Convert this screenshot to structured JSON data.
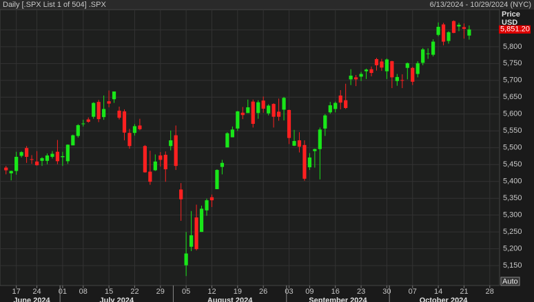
{
  "header": {
    "title": "Daily [.SPX List 1 of 504] .SPX",
    "range": "6/13/2024 - 10/29/2024 (NYC)",
    "button": "Auto"
  },
  "chart_data": {
    "type": "candlestick",
    "y_axis_title": "Price",
    "y_axis_unit": "USD",
    "categories": [
      null,
      null,
      "17",
      null,
      null,
      null,
      "24",
      null,
      null,
      null,
      null,
      "01",
      null,
      null,
      null,
      "08",
      null,
      null,
      null,
      null,
      "15",
      null,
      null,
      null,
      null,
      "22",
      null,
      null,
      null,
      null,
      "29",
      null,
      null,
      null,
      null,
      "05",
      null,
      null,
      null,
      null,
      "12",
      null,
      null,
      null,
      null,
      "19",
      null,
      null,
      null,
      null,
      "26",
      null,
      null,
      null,
      null,
      "03",
      null,
      null,
      null,
      "09",
      null,
      null,
      null,
      null,
      "16",
      null,
      null,
      null,
      null,
      "23",
      null,
      null,
      null,
      null,
      "30",
      null,
      null,
      null,
      null,
      "07",
      null,
      null,
      null,
      null,
      "14",
      null,
      null,
      null,
      null,
      "21",
      null,
      null,
      null,
      null,
      "28",
      null
    ],
    "months": [
      {
        "label": "June 2024",
        "start": 0
      },
      {
        "label": "July 2024",
        "start": 11
      },
      {
        "label": "August 2024",
        "start": 33
      },
      {
        "label": "September 2024",
        "start": 55
      },
      {
        "label": "October 2024",
        "start": 75
      }
    ],
    "open": [
      5441,
      5424,
      5431,
      5476,
      5499,
      5466,
      5459,
      5461,
      5461,
      5473,
      5488,
      5472,
      5460,
      5507,
      5535,
      5572,
      5584,
      5592,
      5636,
      5591,
      5638,
      5644,
      5610,
      5608,
      5544,
      5544,
      5566,
      5505,
      5429,
      5433,
      5477,
      5479,
      5505,
      5537,
      5376,
      5151,
      5206,
      5293,
      5250,
      5314,
      5353,
      5377,
      5443,
      5501,
      5531,
      5557,
      5604,
      5603,
      5637,
      5603,
      5640,
      5602,
      5630,
      5607,
      5613,
      5612,
      5506,
      5522,
      5508,
      5442,
      5490,
      5496,
      5557,
      5605,
      5615,
      5655,
      5641,
      5703,
      5709,
      5711,
      5727,
      5733,
      5763,
      5756,
      5727,
      5757,
      5698,
      5701,
      5737,
      5737,
      5719,
      5752,
      5778,
      5776,
      5835,
      5866,
      5817,
      5876,
      5860,
      5858,
      5833,
      null,
      null,
      null,
      null,
      null
    ],
    "high": [
      5446,
      5432,
      5488,
      5490,
      5505,
      5478,
      5490,
      5472,
      5483,
      5490,
      5523,
      5488,
      5510,
      5539,
      5570,
      5583,
      5590,
      5635,
      5642,
      5655,
      5670,
      5667,
      5622,
      5614,
      5556,
      5570,
      5586,
      5508,
      5491,
      5480,
      5487,
      5489,
      5551,
      5566,
      5395,
      5250,
      5312,
      5331,
      5328,
      5349,
      5361,
      5436,
      5464,
      5546,
      5563,
      5609,
      5621,
      5643,
      5643,
      5641,
      5652,
      5629,
      5632,
      5646,
      5651,
      5613,
      5553,
      5546,
      5522,
      5484,
      5497,
      5560,
      5600,
      5636,
      5637,
      5671,
      5690,
      5733,
      5716,
      5725,
      5735,
      5741,
      5767,
      5764,
      5765,
      5758,
      5719,
      5718,
      5753,
      5740,
      5757,
      5796,
      5795,
      5822,
      5872,
      5871,
      5846,
      5878,
      5871,
      5869,
      5863,
      null,
      null,
      null,
      null,
      null
    ],
    "low": [
      5421,
      5403,
      5420,
      5471,
      5455,
      5452,
      5447,
      5446,
      5451,
      5468,
      5451,
      5446,
      5452,
      5507,
      5530,
      5563,
      5574,
      5586,
      5576,
      5583,
      5620,
      5633,
      5584,
      5522,
      5497,
      5536,
      5552,
      5426,
      5390,
      5431,
      5444,
      5399,
      5492,
      5434,
      5283,
      5119,
      5193,
      5195,
      5250,
      5298,
      5324,
      5377,
      5421,
      5501,
      5531,
      5550,
      5585,
      5603,
      5560,
      5586,
      5604,
      5596,
      5560,
      5580,
      5581,
      5511,
      5505,
      5486,
      5402,
      5434,
      5441,
      5406,
      5535,
      5601,
      5605,
      5614,
      5615,
      5686,
      5683,
      5698,
      5704,
      5712,
      5729,
      5728,
      5704,
      5677,
      5684,
      5677,
      5703,
      5686,
      5709,
      5745,
      5764,
      5771,
      5831,
      5804,
      5809,
      5840,
      5846,
      5824,
      5821,
      null,
      null,
      null,
      null,
      null
    ],
    "close": [
      5433,
      5431,
      5473,
      5487,
      5473,
      5464,
      5448,
      5469,
      5477,
      5482,
      5460,
      5475,
      5509,
      5537,
      5567,
      5572,
      5577,
      5633,
      5585,
      5615,
      5631,
      5667,
      5589,
      5545,
      5505,
      5564,
      5555,
      5427,
      5399,
      5459,
      5464,
      5436,
      5522,
      5446,
      5347,
      5186,
      5240,
      5199,
      5319,
      5344,
      5344,
      5434,
      5455,
      5543,
      5554,
      5608,
      5597,
      5620,
      5571,
      5635,
      5616,
      5625,
      5592,
      5592,
      5648,
      5529,
      5520,
      5503,
      5408,
      5471,
      5496,
      5554,
      5596,
      5626,
      5633,
      5634,
      5618,
      5714,
      5703,
      5719,
      5732,
      5722,
      5745,
      5738,
      5762,
      5709,
      5710,
      5700,
      5751,
      5696,
      5751,
      5792,
      5780,
      5815,
      5859,
      5815,
      5843,
      5841,
      5865,
      5853,
      5851.2,
      null,
      null,
      null,
      null,
      null
    ],
    "up_color": "#19e619",
    "down_color": "#ff2020",
    "last_price": {
      "value": 5851.2,
      "label": "5,851.20"
    },
    "ylim": [
      5091,
      5910
    ],
    "yticks": [
      {
        "value": 5150,
        "label": "5,150"
      },
      {
        "value": 5200,
        "label": "5,200"
      },
      {
        "value": 5250,
        "label": "5,250"
      },
      {
        "value": 5300,
        "label": "5,300"
      },
      {
        "value": 5350,
        "label": "5,350"
      },
      {
        "value": 5400,
        "label": "5,400"
      },
      {
        "value": 5450,
        "label": "5,450"
      },
      {
        "value": 5500,
        "label": "5,500"
      },
      {
        "value": 5550,
        "label": "5,550"
      },
      {
        "value": 5600,
        "label": "5,600"
      },
      {
        "value": 5650,
        "label": "5,650"
      },
      {
        "value": 5700,
        "label": "5,700"
      },
      {
        "value": 5750,
        "label": "5,750"
      },
      {
        "value": 5800,
        "label": "5,800"
      },
      {
        "value": 5850,
        "label": "5,850"
      }
    ],
    "grid": true
  }
}
